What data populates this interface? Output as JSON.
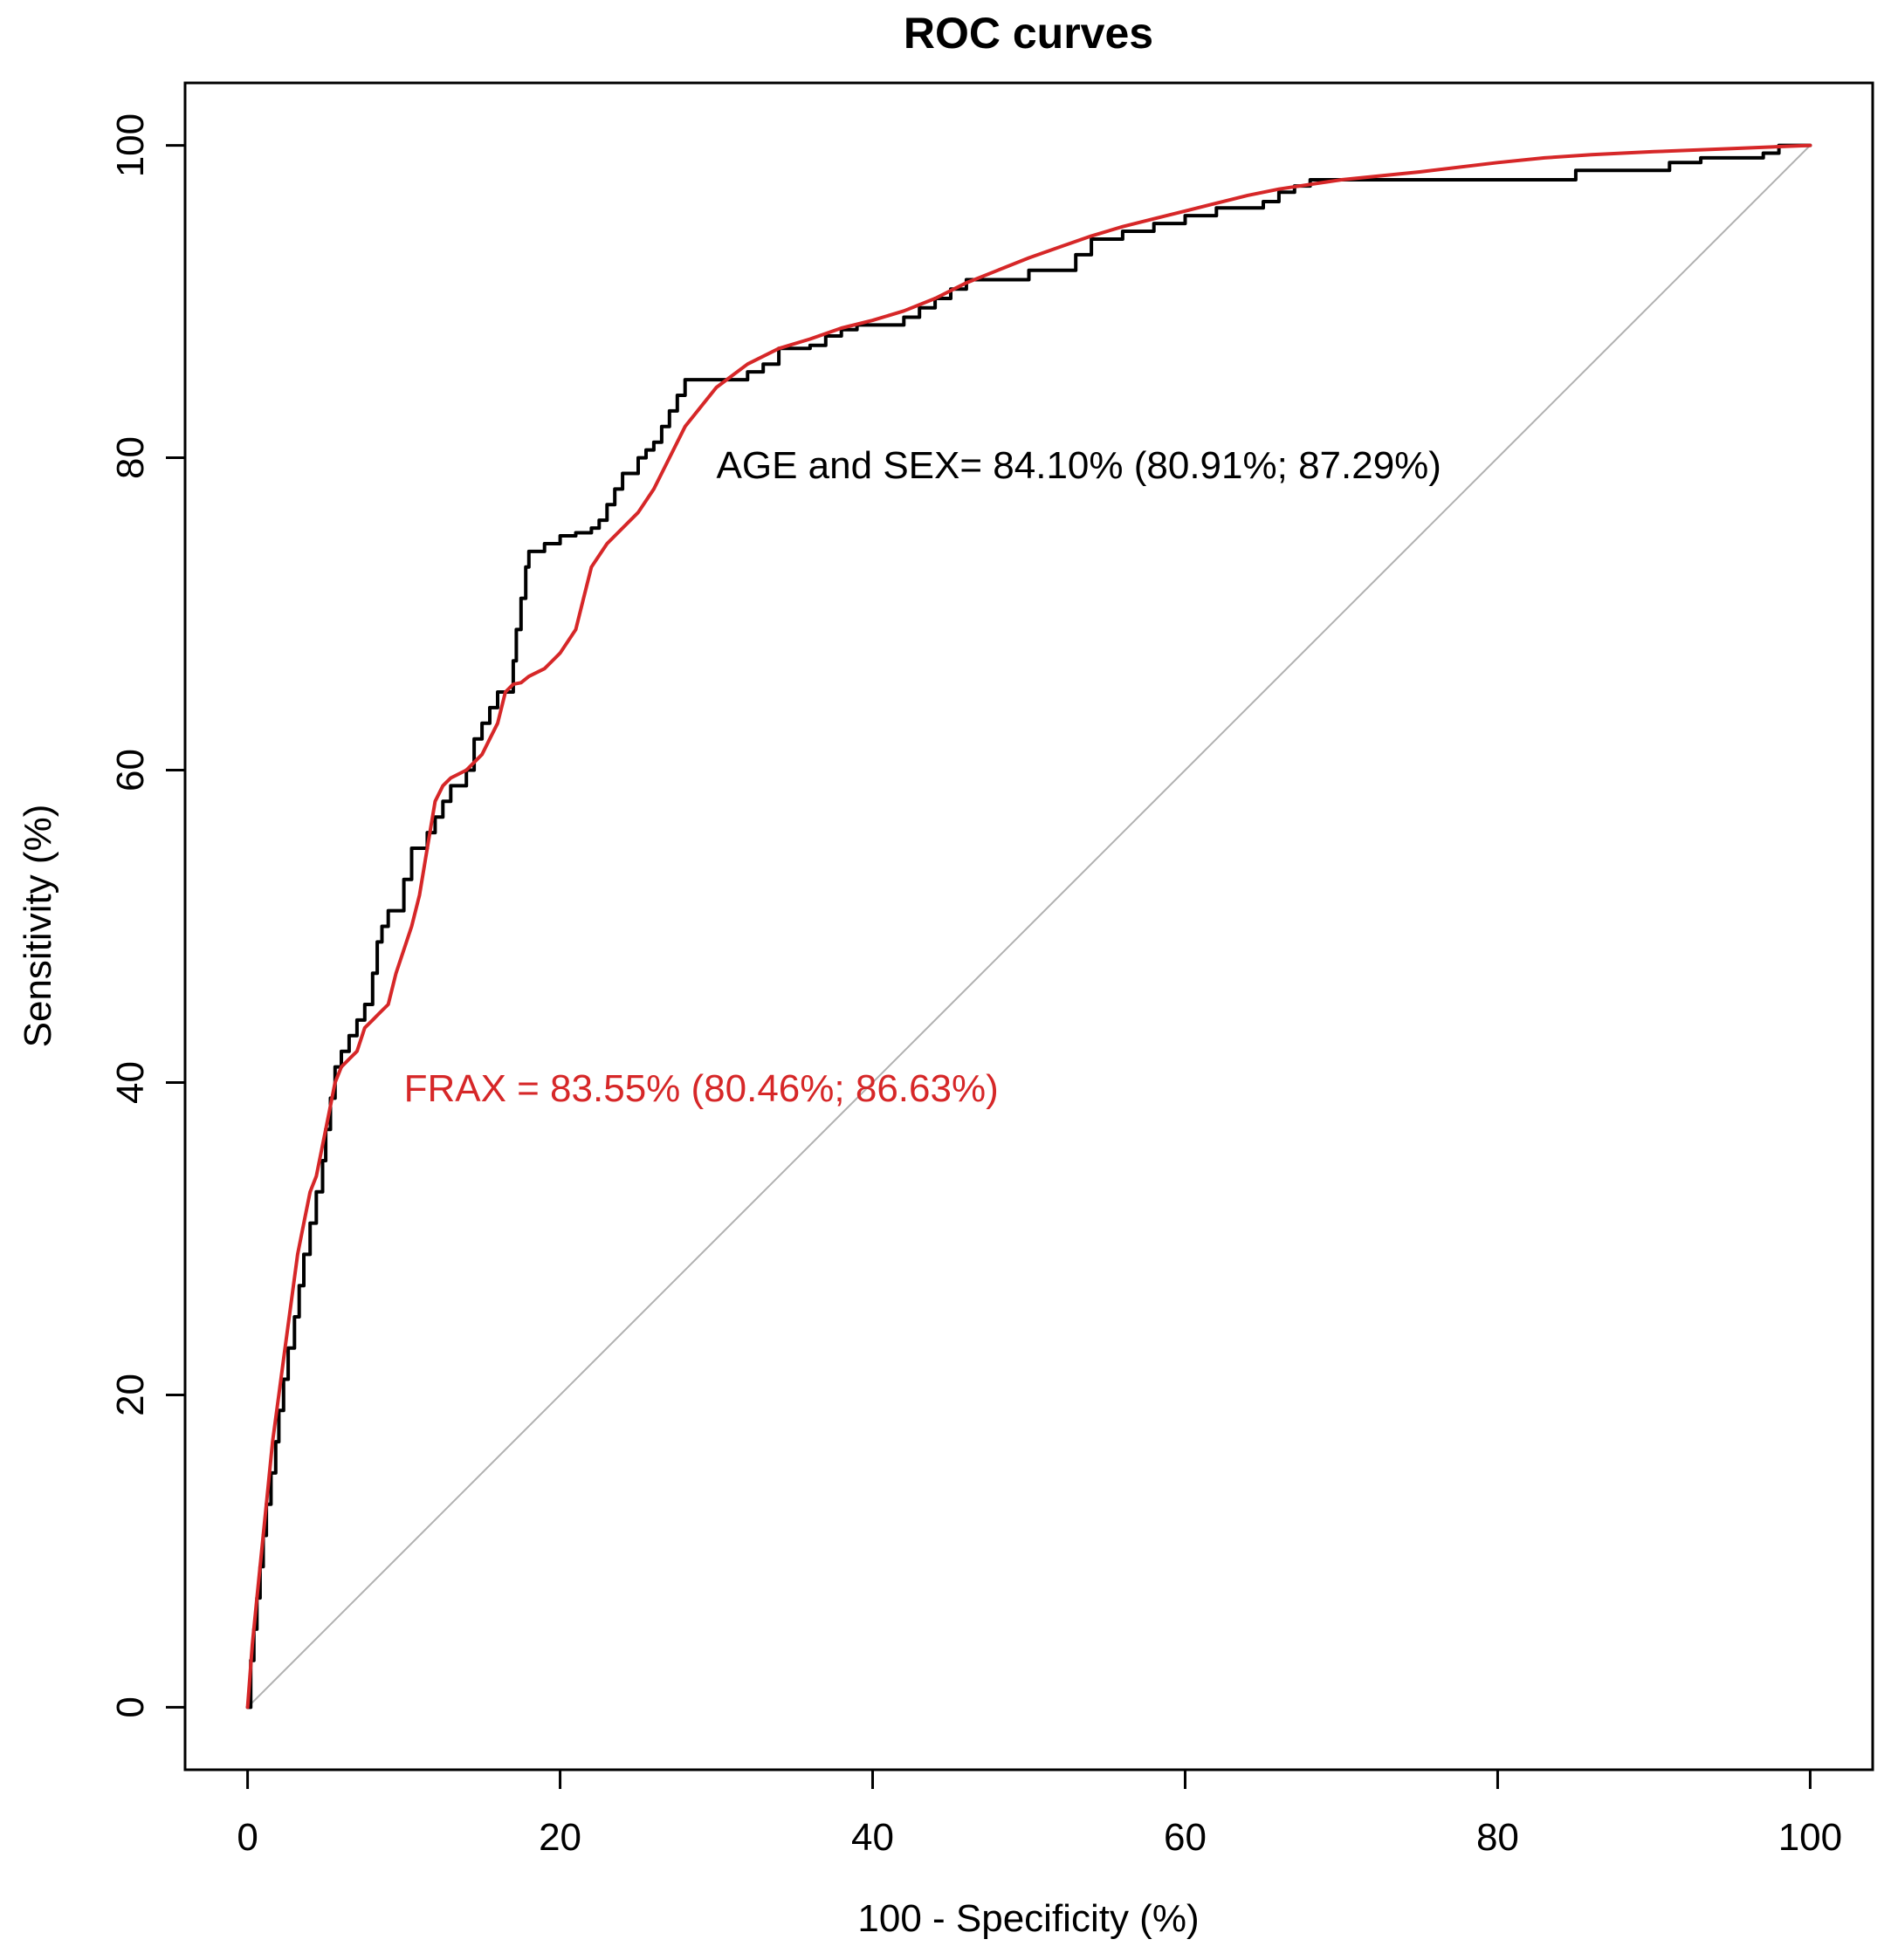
{
  "chart_data": {
    "type": "line",
    "title": "ROC curves",
    "xlabel": "100 - Specificity (%)",
    "ylabel": "Sensitivity (%)",
    "xlim": [
      -4,
      104
    ],
    "ylim": [
      -4,
      104
    ],
    "x_ticks": [
      0,
      20,
      40,
      60,
      80,
      100
    ],
    "y_ticks": [
      0,
      20,
      40,
      60,
      80,
      100
    ],
    "grid": false,
    "colors": {
      "age_sex": "#000000",
      "frax": "#d62728",
      "reference": "#b0b0b0",
      "frame": "#000000"
    },
    "series": [
      {
        "name": "AGE and SEX",
        "color": "#000000",
        "step": true,
        "x": [
          0,
          0.2,
          0.4,
          0.6,
          0.8,
          1.0,
          1.2,
          1.5,
          1.8,
          2.0,
          2.3,
          2.6,
          3.0,
          3.3,
          3.6,
          4.0,
          4.4,
          4.8,
          5.0,
          5.3,
          5.6,
          6.0,
          6.5,
          7.0,
          7.5,
          8.0,
          8.3,
          8.6,
          9.0,
          9.5,
          10.0,
          10.5,
          11.0,
          11.5,
          12.0,
          12.5,
          13.0,
          14.0,
          14.5,
          15.0,
          15.5,
          16.0,
          16.5,
          17.0,
          17.2,
          17.5,
          17.8,
          18.0,
          19.0,
          20.0,
          21.0,
          22.0,
          22.5,
          23.0,
          23.5,
          24.0,
          25.0,
          25.5,
          26.0,
          26.5,
          27.0,
          27.5,
          28.0,
          30.0,
          32.0,
          33.0,
          34.0,
          36.0,
          37.0,
          38.0,
          39.0,
          40.0,
          42.0,
          43.0,
          44.0,
          45.0,
          46.0,
          48.0,
          50.0,
          52.0,
          53.0,
          54.0,
          55.0,
          56.0,
          58.0,
          60.0,
          62.0,
          63.0,
          65.0,
          66.0,
          67.0,
          68.0,
          70.0,
          75.0,
          80.0,
          83.0,
          85.0,
          88.0,
          91.0,
          93.0,
          95.0,
          97.0,
          98.0,
          100.0
        ],
        "y": [
          0,
          3,
          5,
          7,
          9,
          11,
          13,
          15,
          17,
          19,
          21,
          23,
          25,
          27,
          29,
          31,
          33,
          35,
          37,
          39,
          41,
          42,
          43,
          44,
          45,
          47,
          49,
          50,
          51,
          51,
          53,
          55,
          55,
          56,
          57,
          58,
          59,
          60,
          62,
          63,
          64,
          65,
          65,
          67,
          69,
          71,
          73,
          74,
          74.5,
          75,
          75.2,
          75.5,
          76,
          77,
          78,
          79,
          80,
          80.5,
          81,
          82,
          83,
          84,
          85,
          85,
          85.5,
          86,
          87,
          87.2,
          87.8,
          88.2,
          88.5,
          88.5,
          89,
          89.6,
          90.2,
          90.8,
          91.4,
          91.4,
          92,
          92,
          93,
          94,
          94,
          94.5,
          95,
          95.5,
          96,
          96,
          96.4,
          97,
          97.4,
          97.8,
          97.8,
          97.8,
          97.8,
          97.8,
          98.4,
          98.4,
          98.9,
          99.2,
          99.2,
          99.5,
          100,
          100
        ],
        "auc_label": "AGE and SEX= 84.10% (80.91%; 87.29%)"
      },
      {
        "name": "FRAX",
        "color": "#d62728",
        "step": false,
        "x": [
          0,
          0.3,
          0.6,
          1.0,
          1.3,
          1.6,
          2.0,
          2.4,
          2.8,
          3.2,
          3.6,
          4.0,
          4.4,
          4.8,
          5.2,
          5.6,
          6.0,
          6.5,
          7.0,
          7.5,
          8.0,
          8.5,
          9.0,
          9.5,
          10.0,
          10.5,
          11.0,
          11.5,
          12.0,
          12.5,
          13.0,
          14.0,
          15.0,
          15.5,
          16.0,
          16.5,
          17.0,
          17.5,
          18.0,
          19.0,
          20.0,
          21.0,
          21.5,
          22.0,
          23.0,
          24.0,
          25.0,
          26.0,
          27.0,
          28.0,
          30.0,
          32.0,
          34.0,
          36.0,
          38.0,
          40.0,
          42.0,
          44.0,
          46.0,
          48.0,
          50.0,
          52.0,
          54.0,
          56.0,
          58.0,
          60.0,
          62.0,
          64.0,
          66.0,
          68.0,
          70.0,
          75.0,
          80.0,
          83.0,
          86.0,
          90.0,
          95.0,
          100.0
        ],
        "y": [
          0,
          4,
          7,
          11,
          14,
          17,
          20,
          23,
          26,
          29,
          31,
          33,
          34,
          36,
          38,
          40,
          41,
          41.5,
          42,
          43.5,
          44,
          44.5,
          45,
          47,
          48.5,
          50,
          52,
          55,
          58,
          59,
          59.5,
          60,
          61,
          62,
          63,
          65,
          65.5,
          65.6,
          66,
          66.5,
          67.5,
          69,
          71,
          73,
          74.5,
          75.5,
          76.5,
          78,
          80,
          82,
          84.5,
          86,
          87,
          87.6,
          88.3,
          88.8,
          89.4,
          90.2,
          91.2,
          92,
          92.8,
          93.5,
          94.2,
          94.8,
          95.3,
          95.8,
          96.3,
          96.8,
          97.2,
          97.5,
          97.8,
          98.3,
          98.9,
          99.2,
          99.4,
          99.6,
          99.8,
          100
        ],
        "auc_label": "FRAX = 83.55% (80.46%; 86.63%)"
      }
    ],
    "reference_line": {
      "x": [
        0,
        100
      ],
      "y": [
        0,
        100
      ]
    },
    "annotations": {
      "age_sex": {
        "text": "AGE and SEX= 84.10% (80.91%; 87.29%)",
        "x": 30.0,
        "y": 78.7
      },
      "frax": {
        "text": "FRAX = 83.55% (80.46%; 86.63%)",
        "x": 10.0,
        "y": 38.8
      }
    }
  }
}
